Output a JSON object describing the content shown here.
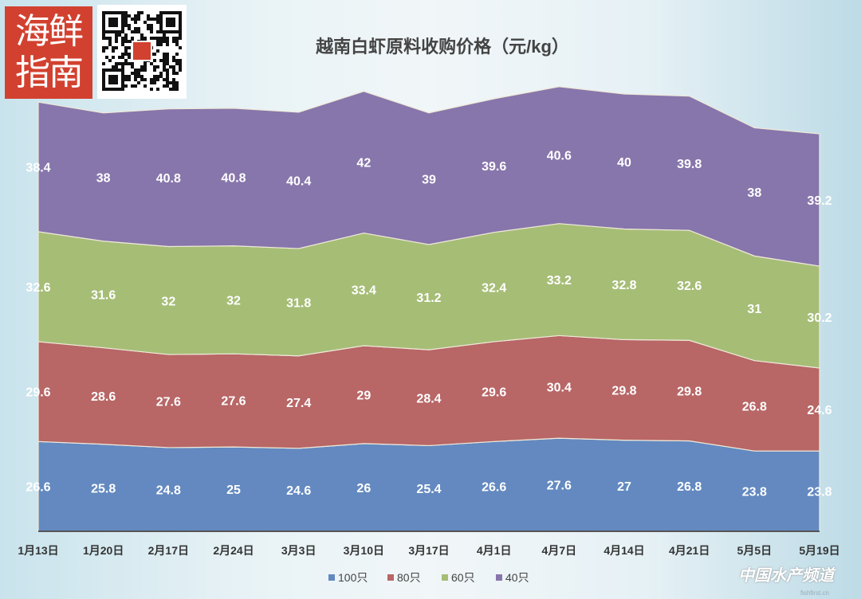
{
  "logo_text": "海鲜指南",
  "watermark": "中国水产频道",
  "watermark_url": "fishfirst.cn",
  "chart_data": {
    "type": "area",
    "stacked": true,
    "title": "越南白虾原料收购价格（元/kg）",
    "xlabel": "",
    "ylabel": "",
    "ylim": [
      0,
      140
    ],
    "grid": false,
    "legend_position": "bottom",
    "categories": [
      "1月13日",
      "1月20日",
      "2月17日",
      "2月24日",
      "3月3日",
      "3月10日",
      "3月17日",
      "4月1日",
      "4月7日",
      "4月14日",
      "4月21日",
      "5月5日",
      "5月19日"
    ],
    "series": [
      {
        "name": "100只",
        "color": "#6389c0",
        "values": [
          26.6,
          25.8,
          24.8,
          25,
          24.6,
          26,
          25.4,
          26.6,
          27.6,
          27,
          26.8,
          23.8,
          23.8
        ]
      },
      {
        "name": "80只",
        "color": "#b86666",
        "values": [
          29.6,
          28.6,
          27.6,
          27.6,
          27.4,
          29,
          28.4,
          29.6,
          30.4,
          29.8,
          29.8,
          26.8,
          24.6
        ]
      },
      {
        "name": "60只",
        "color": "#a6bd76",
        "values": [
          32.6,
          31.6,
          32,
          32,
          31.8,
          33.4,
          31.2,
          32.4,
          33.2,
          32.8,
          32.6,
          31,
          30.2
        ]
      },
      {
        "name": "40只",
        "color": "#8776ab",
        "values": [
          38.4,
          38,
          40.8,
          40.8,
          40.4,
          42,
          39,
          39.6,
          40.6,
          40,
          39.8,
          38,
          39.2
        ]
      }
    ]
  }
}
